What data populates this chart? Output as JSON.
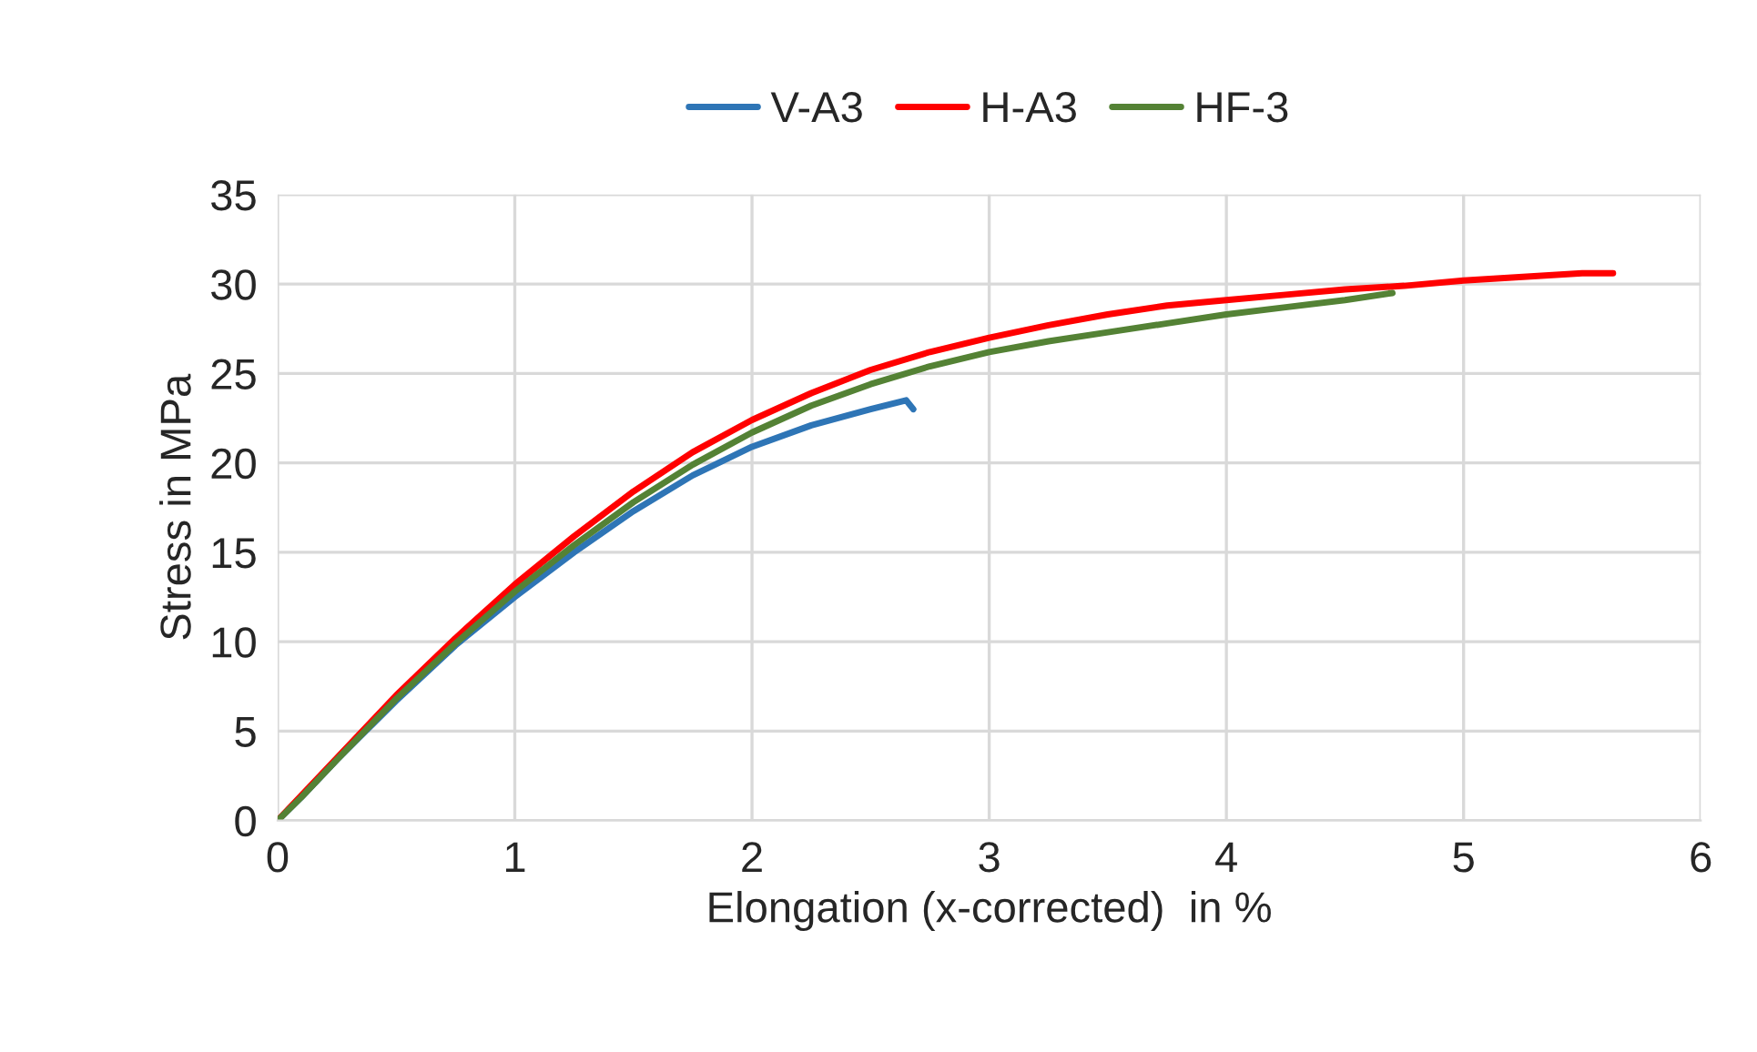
{
  "chart_data": {
    "type": "line",
    "xlabel": "Elongation (x-corrected)  in %",
    "ylabel": "Stress in MPa",
    "xlim": [
      0,
      6
    ],
    "xticks": [
      0,
      1,
      2,
      3,
      4,
      5,
      6
    ],
    "ylim": [
      0,
      35
    ],
    "yticks": [
      0,
      5,
      10,
      15,
      20,
      25,
      30,
      35
    ],
    "grid": true,
    "legend": "top",
    "marker": "none",
    "line_style": "solid",
    "series": [
      {
        "name": "V-A3",
        "color": "#2e75b6",
        "x": [
          0,
          0.1,
          0.25,
          0.5,
          0.75,
          1,
          1.25,
          1.5,
          1.75,
          2,
          2.25,
          2.5,
          2.65,
          2.68
        ],
        "values": [
          0,
          1.3,
          3.4,
          6.7,
          9.8,
          12.5,
          15.0,
          17.3,
          19.3,
          20.9,
          22.1,
          23.0,
          23.5,
          23.0
        ]
      },
      {
        "name": "H-A3",
        "color": "#ff0000",
        "x": [
          0,
          0.1,
          0.25,
          0.5,
          0.75,
          1,
          1.25,
          1.5,
          1.75,
          2,
          2.25,
          2.5,
          2.75,
          3,
          3.25,
          3.5,
          3.75,
          4,
          4.25,
          4.5,
          4.75,
          5,
          5.25,
          5.5,
          5.63
        ],
        "values": [
          0,
          1.4,
          3.5,
          7.0,
          10.2,
          13.2,
          15.9,
          18.4,
          20.6,
          22.4,
          23.9,
          25.2,
          26.2,
          27.0,
          27.7,
          28.3,
          28.8,
          29.1,
          29.4,
          29.7,
          29.9,
          30.2,
          30.4,
          30.6,
          30.6
        ]
      },
      {
        "name": "HF-3",
        "color": "#548235",
        "x": [
          0,
          0.1,
          0.25,
          0.5,
          0.75,
          1,
          1.25,
          1.5,
          1.75,
          2,
          2.25,
          2.5,
          2.75,
          3,
          3.25,
          3.5,
          3.75,
          4,
          4.25,
          4.5,
          4.7
        ],
        "values": [
          0,
          1.3,
          3.4,
          6.8,
          9.9,
          12.8,
          15.4,
          17.8,
          19.9,
          21.7,
          23.2,
          24.4,
          25.4,
          26.2,
          26.8,
          27.3,
          27.8,
          28.3,
          28.7,
          29.1,
          29.5
        ]
      }
    ]
  }
}
